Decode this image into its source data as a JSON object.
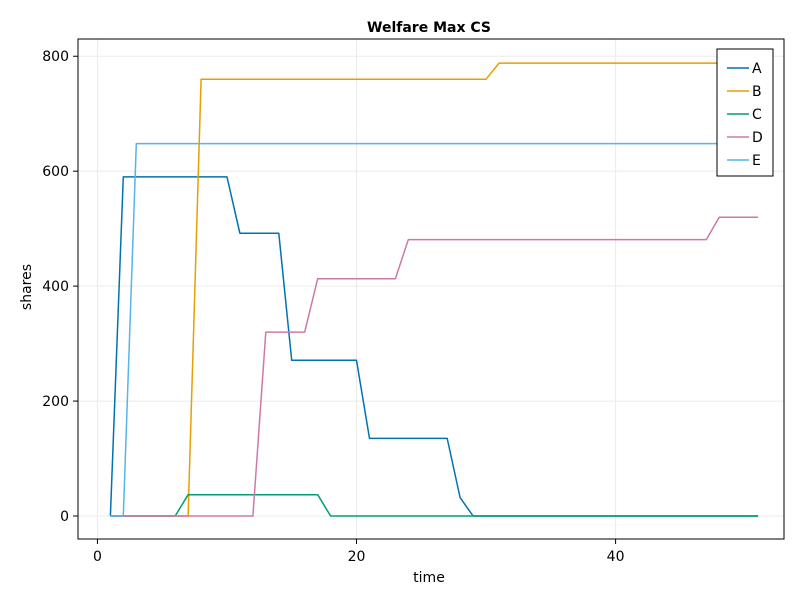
{
  "chart_data": {
    "type": "line",
    "title": "Welfare Max CS",
    "xlabel": "time",
    "ylabel": "shares",
    "xlim": [
      -1.5,
      53
    ],
    "ylim": [
      -40,
      830
    ],
    "xticks": [
      0,
      20,
      40
    ],
    "yticks": [
      0,
      200,
      400,
      600,
      800
    ],
    "grid": true,
    "legend_position": "top-right",
    "series": [
      {
        "name": "A",
        "color": "#0072B2",
        "points": [
          [
            1,
            0
          ],
          [
            2,
            590
          ],
          [
            10,
            590
          ],
          [
            11,
            492
          ],
          [
            14,
            492
          ],
          [
            15,
            271
          ],
          [
            20,
            271
          ],
          [
            21,
            135
          ],
          [
            27,
            135
          ],
          [
            28,
            32
          ],
          [
            29,
            0
          ],
          [
            51,
            0
          ]
        ]
      },
      {
        "name": "B",
        "color": "#E69F00",
        "points": [
          [
            1,
            0
          ],
          [
            7,
            0
          ],
          [
            8,
            760
          ],
          [
            30,
            760
          ],
          [
            31,
            788
          ],
          [
            51,
            788
          ]
        ]
      },
      {
        "name": "C",
        "color": "#009E73",
        "points": [
          [
            1,
            0
          ],
          [
            6,
            0
          ],
          [
            7,
            37
          ],
          [
            17,
            37
          ],
          [
            18,
            0
          ],
          [
            51,
            0
          ]
        ]
      },
      {
        "name": "D",
        "color": "#CC79A7",
        "points": [
          [
            1,
            0
          ],
          [
            12,
            0
          ],
          [
            13,
            320
          ],
          [
            16,
            320
          ],
          [
            17,
            413
          ],
          [
            23,
            413
          ],
          [
            24,
            481
          ],
          [
            47,
            481
          ],
          [
            48,
            520
          ],
          [
            51,
            520
          ]
        ]
      },
      {
        "name": "E",
        "color": "#56B4E9",
        "points": [
          [
            1,
            0
          ],
          [
            2,
            0
          ],
          [
            3,
            648
          ],
          [
            51,
            648
          ]
        ]
      }
    ]
  }
}
